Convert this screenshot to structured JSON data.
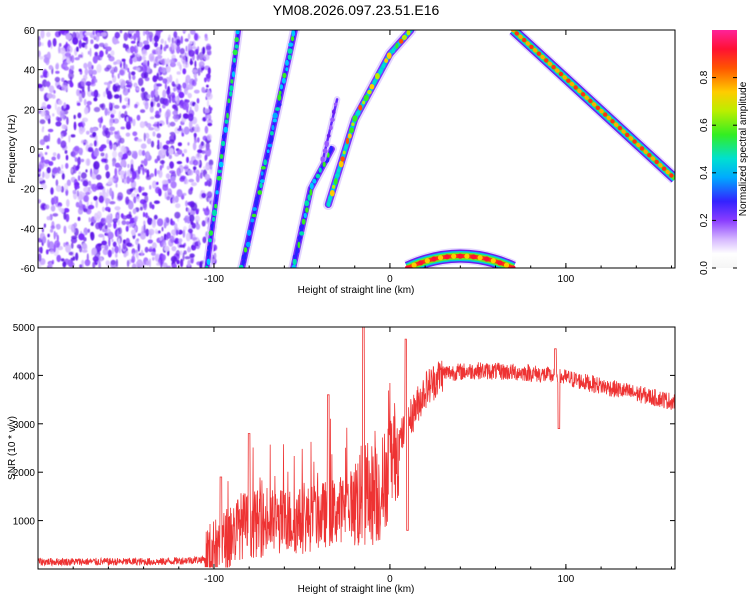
{
  "title": "YM08.2026.097.23.51.E16",
  "chart_data": [
    {
      "type": "heatmap",
      "xlabel": "Height of straight line (km)",
      "ylabel": "Frequency (Hz)",
      "xlim": [
        -200,
        162
      ],
      "ylim": [
        -60,
        60
      ],
      "xticks": [
        -100,
        0,
        100
      ],
      "yticks": [
        -60,
        -40,
        -20,
        0,
        20,
        40,
        60
      ],
      "colorbar": {
        "label": "Normalized spectral amplitude",
        "range": [
          0,
          1
        ],
        "ticks": [
          0.0,
          0.2,
          0.4,
          0.6,
          0.8
        ]
      },
      "noise_region_x": [
        -200,
        -102
      ],
      "features": [
        {
          "name": "streak-1",
          "x_at_bottom": -104,
          "x_at_top": -86
        },
        {
          "name": "streak-2",
          "x_at_bottom": -84,
          "x_at_top": -54
        },
        {
          "name": "streak-3",
          "x_at_bottom": -55,
          "x_at_top": -33
        },
        {
          "name": "arc-upper",
          "points": [
            [
              -35,
              -28
            ],
            [
              -20,
              15
            ],
            [
              0,
              48
            ],
            [
              12,
              60
            ]
          ]
        },
        {
          "name": "line-descending",
          "points": [
            [
              70,
              60
            ],
            [
              162,
              -15
            ]
          ]
        },
        {
          "name": "arc-lower",
          "points": [
            [
              10,
              -60
            ],
            [
              25,
              -56
            ],
            [
              40,
              -54
            ],
            [
              55,
              -56
            ],
            [
              70,
              -60
            ]
          ]
        }
      ]
    },
    {
      "type": "line",
      "xlabel": "Height of straight line (km)",
      "ylabel": "SNR (10 * v/v)",
      "xlim": [
        -200,
        162
      ],
      "ylim": [
        0,
        5000
      ],
      "xticks": [
        -100,
        0,
        100
      ],
      "yticks": [
        1000,
        2000,
        3000,
        4000,
        5000
      ],
      "color": "#ee3333",
      "envelope": {
        "x": [
          -200,
          -130,
          -105,
          -95,
          -85,
          -70,
          -50,
          -30,
          -15,
          -5,
          0,
          10,
          20,
          30,
          50,
          80,
          100,
          130,
          162
        ],
        "y": [
          150,
          150,
          200,
          500,
          900,
          950,
          1000,
          1200,
          1500,
          1600,
          2200,
          3000,
          3700,
          4050,
          4100,
          4050,
          3950,
          3700,
          3450
        ]
      },
      "spikes": [
        {
          "x": -96,
          "y": 1900
        },
        {
          "x": -80,
          "y": 2800
        },
        {
          "x": -35,
          "y": 3600
        },
        {
          "x": -15,
          "y": 5000
        },
        {
          "x": 9,
          "y": 4750
        },
        {
          "x": 10,
          "y": 800
        },
        {
          "x": 94,
          "y": 4550
        },
        {
          "x": 96,
          "y": 2900
        }
      ]
    }
  ]
}
